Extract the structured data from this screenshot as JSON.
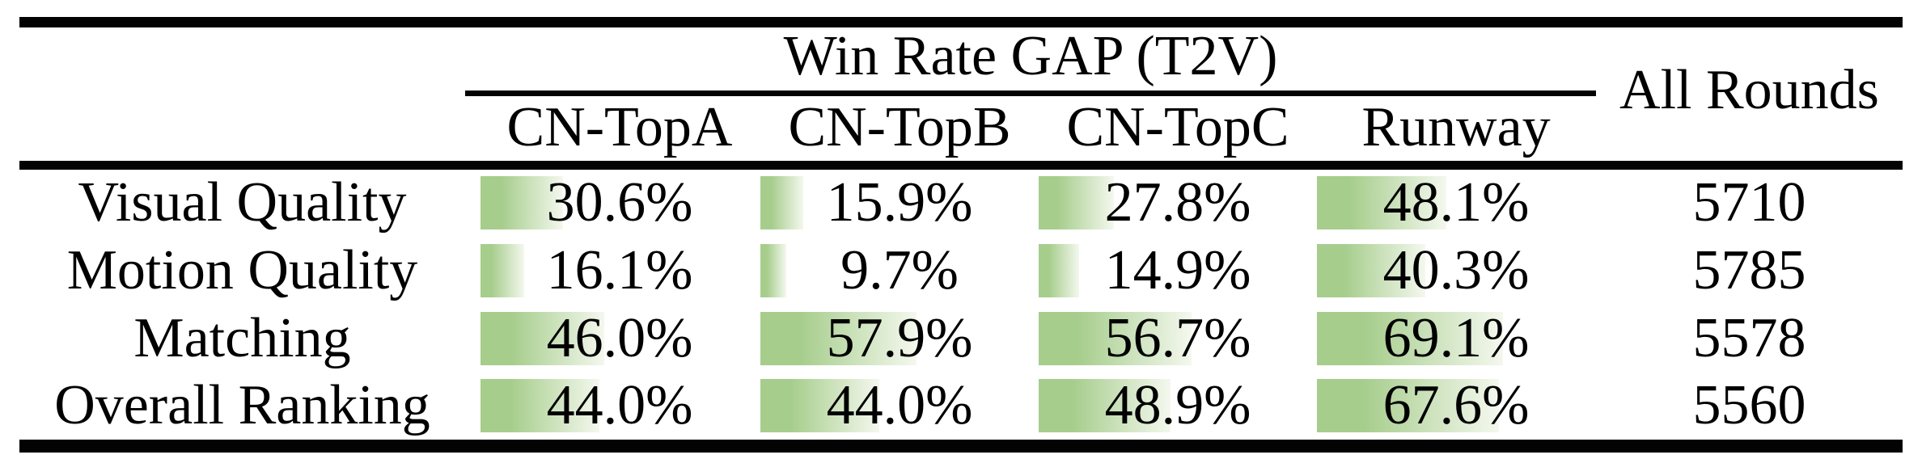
{
  "table": {
    "group_header": "Win Rate GAP (T2V)",
    "all_rounds_label": "All Rounds",
    "columns": [
      "CN-TopA",
      "CN-TopB",
      "CN-TopC",
      "Runway"
    ],
    "rows": [
      {
        "label": "Visual Quality",
        "cells": [
          {
            "display": "30.6%",
            "percent": 30.6
          },
          {
            "display": "15.9%",
            "percent": 15.9
          },
          {
            "display": "27.8%",
            "percent": 27.8
          },
          {
            "display": "48.1%",
            "percent": 48.1
          }
        ],
        "all_rounds": "5710"
      },
      {
        "label": "Motion Quality",
        "cells": [
          {
            "display": "16.1%",
            "percent": 16.1
          },
          {
            "display": "9.7%",
            "percent": 9.7
          },
          {
            "display": "14.9%",
            "percent": 14.9
          },
          {
            "display": "40.3%",
            "percent": 40.3
          }
        ],
        "all_rounds": "5785"
      },
      {
        "label": "Matching",
        "cells": [
          {
            "display": "46.0%",
            "percent": 46.0
          },
          {
            "display": "57.9%",
            "percent": 57.9
          },
          {
            "display": "56.7%",
            "percent": 56.7
          },
          {
            "display": "69.1%",
            "percent": 69.1
          }
        ],
        "all_rounds": "5578"
      },
      {
        "label": "Overall Ranking",
        "cells": [
          {
            "display": "44.0%",
            "percent": 44.0
          },
          {
            "display": "44.0%",
            "percent": 44.0
          },
          {
            "display": "48.9%",
            "percent": 48.9
          },
          {
            "display": "67.6%",
            "percent": 67.6
          }
        ],
        "all_rounds": "5560"
      }
    ],
    "colors": {
      "bar_green": "#a6cd8c",
      "bar_fade": "#f4f8ee",
      "rule_black": "#030303"
    }
  },
  "chart_data": {
    "type": "table",
    "title": "Win Rate GAP (T2V)",
    "columns": [
      "CN-TopA",
      "CN-TopB",
      "CN-TopC",
      "Runway",
      "All Rounds"
    ],
    "categories": [
      "Visual Quality",
      "Motion Quality",
      "Matching",
      "Overall Ranking"
    ],
    "series": [
      {
        "name": "CN-TopA",
        "values": [
          30.6,
          16.1,
          46.0,
          44.0
        ]
      },
      {
        "name": "CN-TopB",
        "values": [
          15.9,
          9.7,
          57.9,
          44.0
        ]
      },
      {
        "name": "CN-TopC",
        "values": [
          27.8,
          14.9,
          56.7,
          48.9
        ]
      },
      {
        "name": "Runway",
        "values": [
          48.1,
          40.3,
          69.1,
          67.6
        ]
      }
    ],
    "all_rounds": [
      5710,
      5785,
      5578,
      5560
    ],
    "unit": "percent",
    "layout_hint": "in-cell green gradient data bars, width proportional to value (100% = full cell width)"
  }
}
